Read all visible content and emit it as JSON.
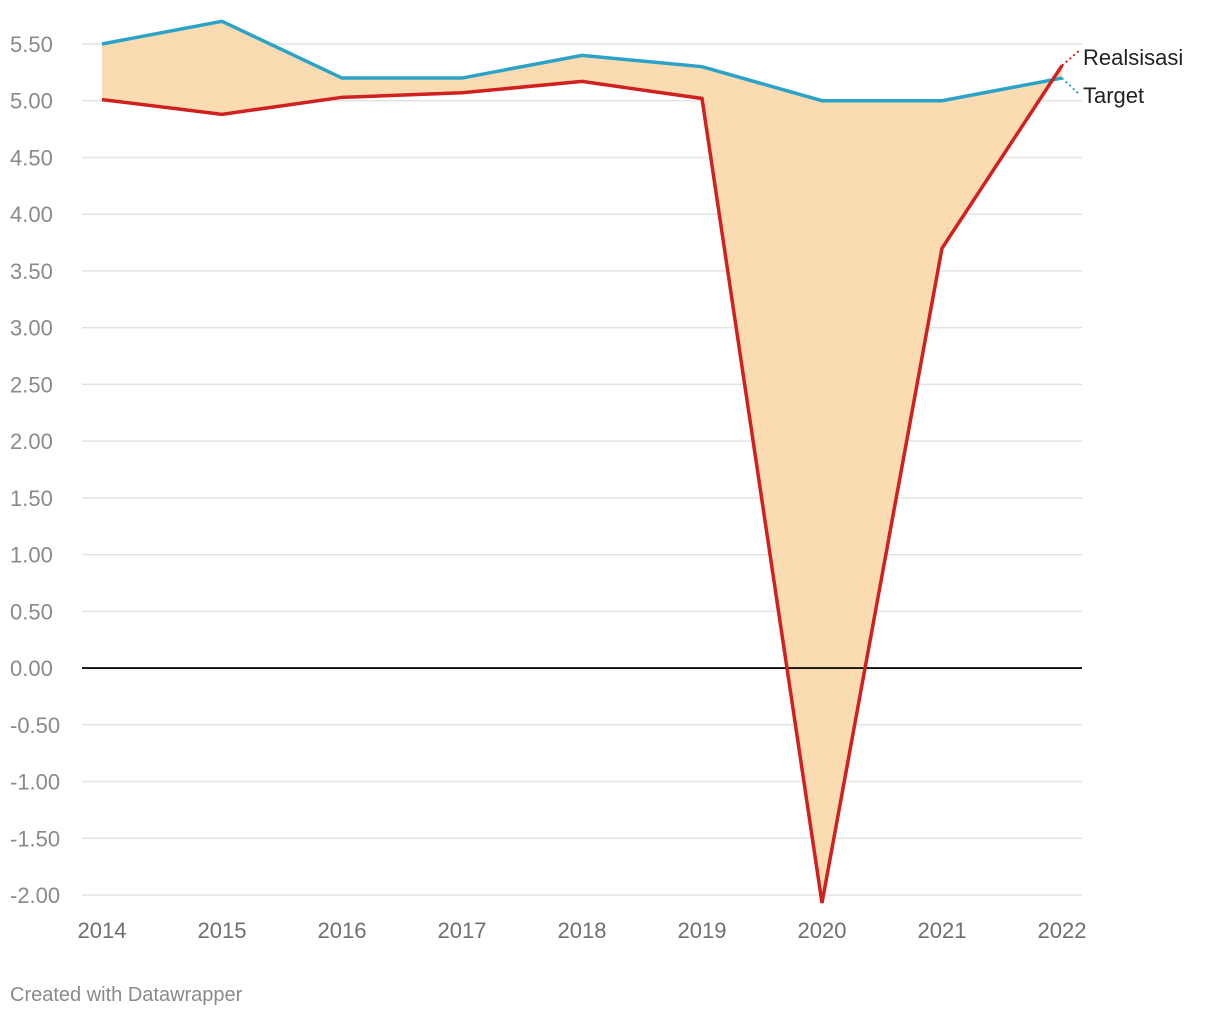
{
  "chart_data": {
    "type": "line",
    "categories": [
      "2014",
      "2015",
      "2016",
      "2017",
      "2018",
      "2019",
      "2020",
      "2021",
      "2022"
    ],
    "series": [
      {
        "name": "Target",
        "color": "#2ba3c9",
        "values": [
          5.5,
          5.7,
          5.2,
          5.2,
          5.4,
          5.3,
          5.0,
          5.0,
          5.2
        ]
      },
      {
        "name": "Realsisasi",
        "color": "#d0201f",
        "values": [
          5.01,
          4.88,
          5.03,
          5.07,
          5.17,
          5.02,
          -2.07,
          3.7,
          5.31
        ]
      }
    ],
    "fill_between": {
      "color": "#fbdcb2"
    },
    "ylim": [
      -2.0,
      5.5
    ],
    "yticks": [
      "5.50",
      "5.00",
      "4.50",
      "4.00",
      "3.50",
      "3.00",
      "2.50",
      "2.00",
      "1.50",
      "1.00",
      "0.50",
      "0.00",
      "-0.50",
      "-1.00",
      "-1.50",
      "-2.00"
    ],
    "ytick_values": [
      5.5,
      5.0,
      4.5,
      4.0,
      3.5,
      3.0,
      2.5,
      2.0,
      1.5,
      1.0,
      0.5,
      0.0,
      -0.5,
      -1.0,
      -1.5,
      -2.0
    ],
    "grid": true,
    "legend": "inline-right",
    "title": "",
    "xlabel": "",
    "ylabel": ""
  },
  "footer": {
    "credit": "Created with Datawrapper"
  }
}
